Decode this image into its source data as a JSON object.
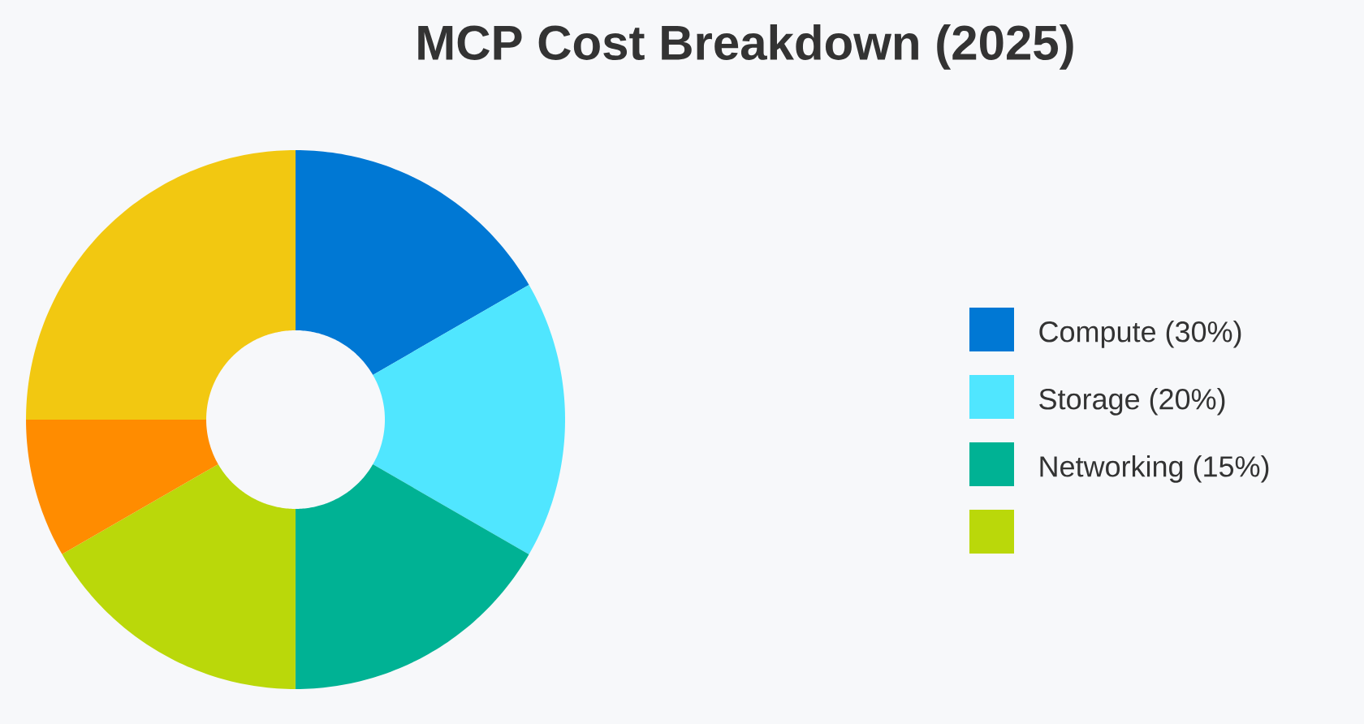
{
  "chart_data": {
    "type": "donut",
    "title": "MCP Cost Breakdown (2025)",
    "categories": [
      "Compute (30%)",
      "Storage (20%)",
      "Networking (15%)",
      null,
      null,
      null
    ],
    "values": [
      16.67,
      16.67,
      16.67,
      16.67,
      8.33,
      25
    ],
    "colors": [
      "#0078d4",
      "#50e6ff",
      "#00b294",
      "#bad80a",
      "#ff8c00",
      "#f2c811"
    ],
    "legend": "right"
  }
}
